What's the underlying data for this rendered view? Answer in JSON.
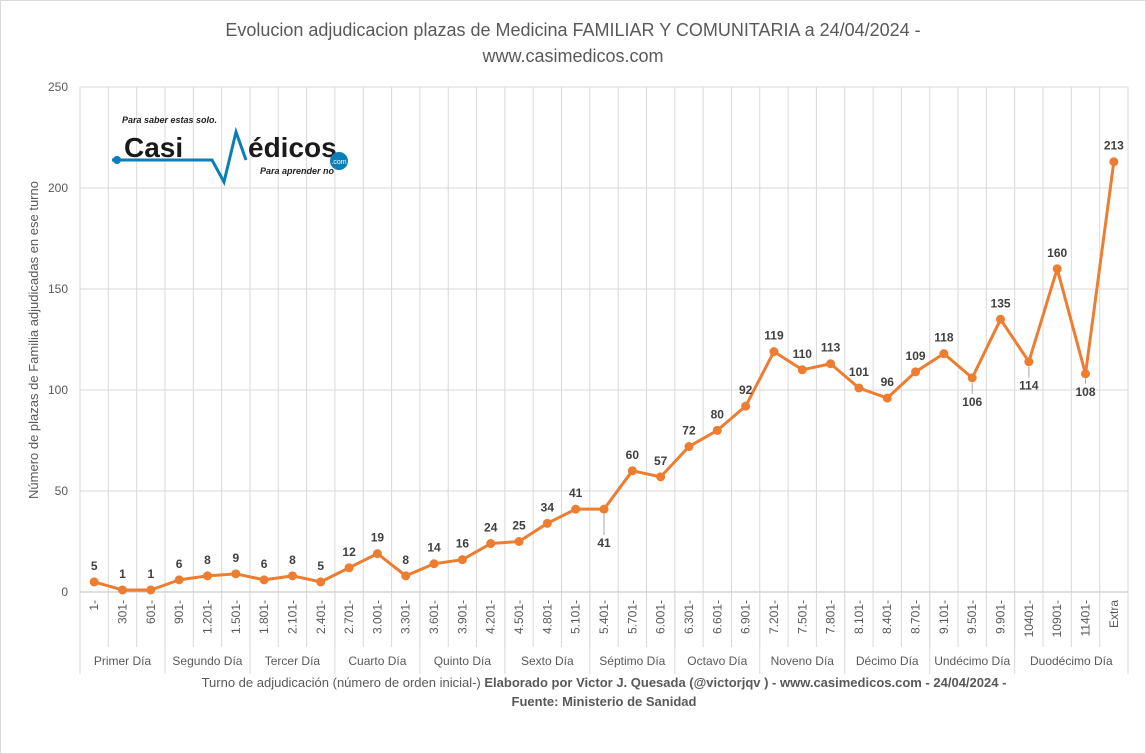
{
  "chart_data": {
    "type": "line",
    "title": "Evolucion adjudicacion plazas de Medicina FAMILIAR Y COMUNITARIA a 24/04/2024 -",
    "subtitle": "www.casimedicos.com",
    "ylabel": "Número de plazas de Familia adjudicadas en ese turno",
    "xlabel_normal": "Turno de adjudicación (número de orden inicial-)",
    "xlabel_bold": "Elaborado por Victor J. Quesada (@victorjqv ) - www.casimedicos.com - 24/04/2024 -",
    "xlabel_line2": "Fuente: Ministerio de Sanidad",
    "ylim": [
      0,
      250
    ],
    "yticks": [
      "0",
      "50",
      "100",
      "150",
      "200",
      "250"
    ],
    "grid": true,
    "line_color": "#ED7D31",
    "categories": [
      "1-",
      "301-",
      "601-",
      "901-",
      "1.201-",
      "1.501-",
      "1.801-",
      "2.101-",
      "2.401-",
      "2.701-",
      "3.001-",
      "3.301-",
      "3.601-",
      "3.901-",
      "4.201-",
      "4.501-",
      "4.801-",
      "5.101-",
      "5.401-",
      "5.701-",
      "6.001-",
      "6.301-",
      "6.601-",
      "6.901-",
      "7.201-",
      "7.501-",
      "7.801-",
      "8.101-",
      "8.401-",
      "8.701-",
      "9.101-",
      "9.501-",
      "9.901-",
      "10401-",
      "10901-",
      "11401-",
      "Extra"
    ],
    "values": [
      5,
      1,
      1,
      6,
      8,
      9,
      6,
      8,
      5,
      12,
      19,
      8,
      14,
      16,
      24,
      25,
      34,
      41,
      41,
      60,
      57,
      72,
      80,
      92,
      119,
      110,
      113,
      101,
      96,
      109,
      118,
      106,
      135,
      114,
      160,
      108,
      213
    ],
    "value_labels": [
      "5",
      "1",
      "1",
      "6",
      "8",
      "9",
      "6",
      "8",
      "5",
      "12",
      "19",
      "8",
      "14",
      "16",
      "24",
      "25",
      "34",
      "41",
      "41",
      "60",
      "57",
      "72",
      "80",
      "92",
      "119",
      "110",
      "113",
      "101",
      "96",
      "109",
      "118",
      "106",
      "135",
      "114",
      "160",
      "108",
      "213"
    ],
    "groups": [
      {
        "label": "Primer Día",
        "count": 3
      },
      {
        "label": "Segundo Día",
        "count": 3
      },
      {
        "label": "Tercer Día",
        "count": 3
      },
      {
        "label": "Cuarto Día",
        "count": 3
      },
      {
        "label": "Quinto Día",
        "count": 3
      },
      {
        "label": "Sexto Día",
        "count": 3
      },
      {
        "label": "Séptimo Día",
        "count": 3
      },
      {
        "label": "Octavo Día",
        "count": 3
      },
      {
        "label": "Noveno Día",
        "count": 3
      },
      {
        "label": "Décimo Día",
        "count": 3
      },
      {
        "label": "Undécimo Día",
        "count": 3
      },
      {
        "label": "Duodécimo Día",
        "count": 4
      }
    ]
  },
  "logo": {
    "tagline_top": "Para saber estas solo.",
    "brand_left": "Casi",
    "brand_right": "édicos",
    "brand_suffix": ".com",
    "tagline_bottom": "Para aprender no"
  }
}
